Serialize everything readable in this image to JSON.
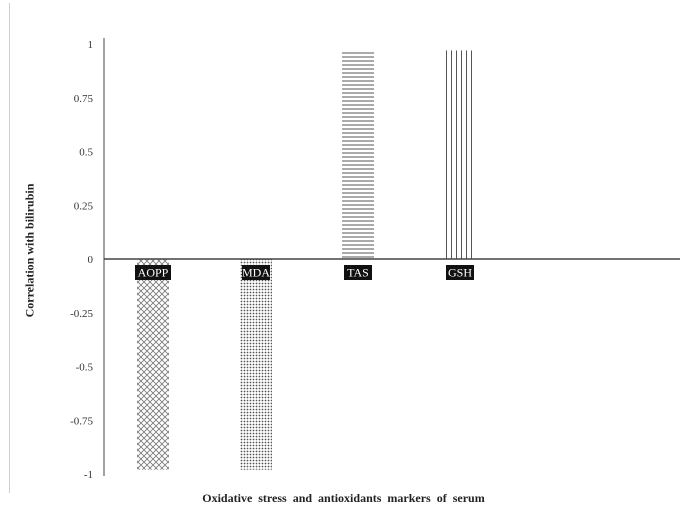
{
  "chart_data": {
    "type": "bar",
    "title": "",
    "xlabel": "Oxidative  stress and antioxidants  markers of serum",
    "ylabel": "Correlation with bilirubin",
    "ylim": [
      -1,
      1
    ],
    "yticks": [
      "1",
      "0.75",
      "0.5",
      "0.25",
      "0",
      "-0.25",
      "-0.5",
      "-0.75",
      "-1"
    ],
    "categories": [
      "AOPP",
      "MDA",
      "TAS",
      "GSH"
    ],
    "values": [
      -0.98,
      -0.98,
      0.97,
      0.97
    ],
    "patterns": [
      "crosshatch",
      "dots",
      "horizontal-lines",
      "vertical-lines"
    ],
    "grid": false,
    "legend": "none"
  }
}
